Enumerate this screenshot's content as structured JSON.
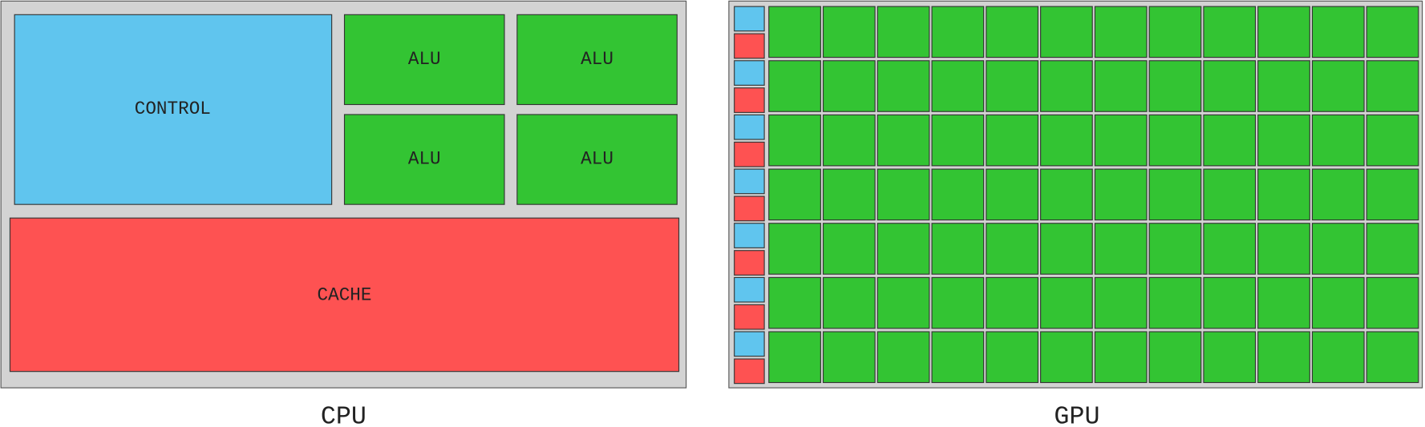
{
  "cpu": {
    "control": "CONTROL",
    "alus": [
      "ALU",
      "ALU",
      "ALU",
      "ALU"
    ],
    "cache": "CACHE",
    "label": "CPU"
  },
  "gpu": {
    "label": "GPU"
  }
}
